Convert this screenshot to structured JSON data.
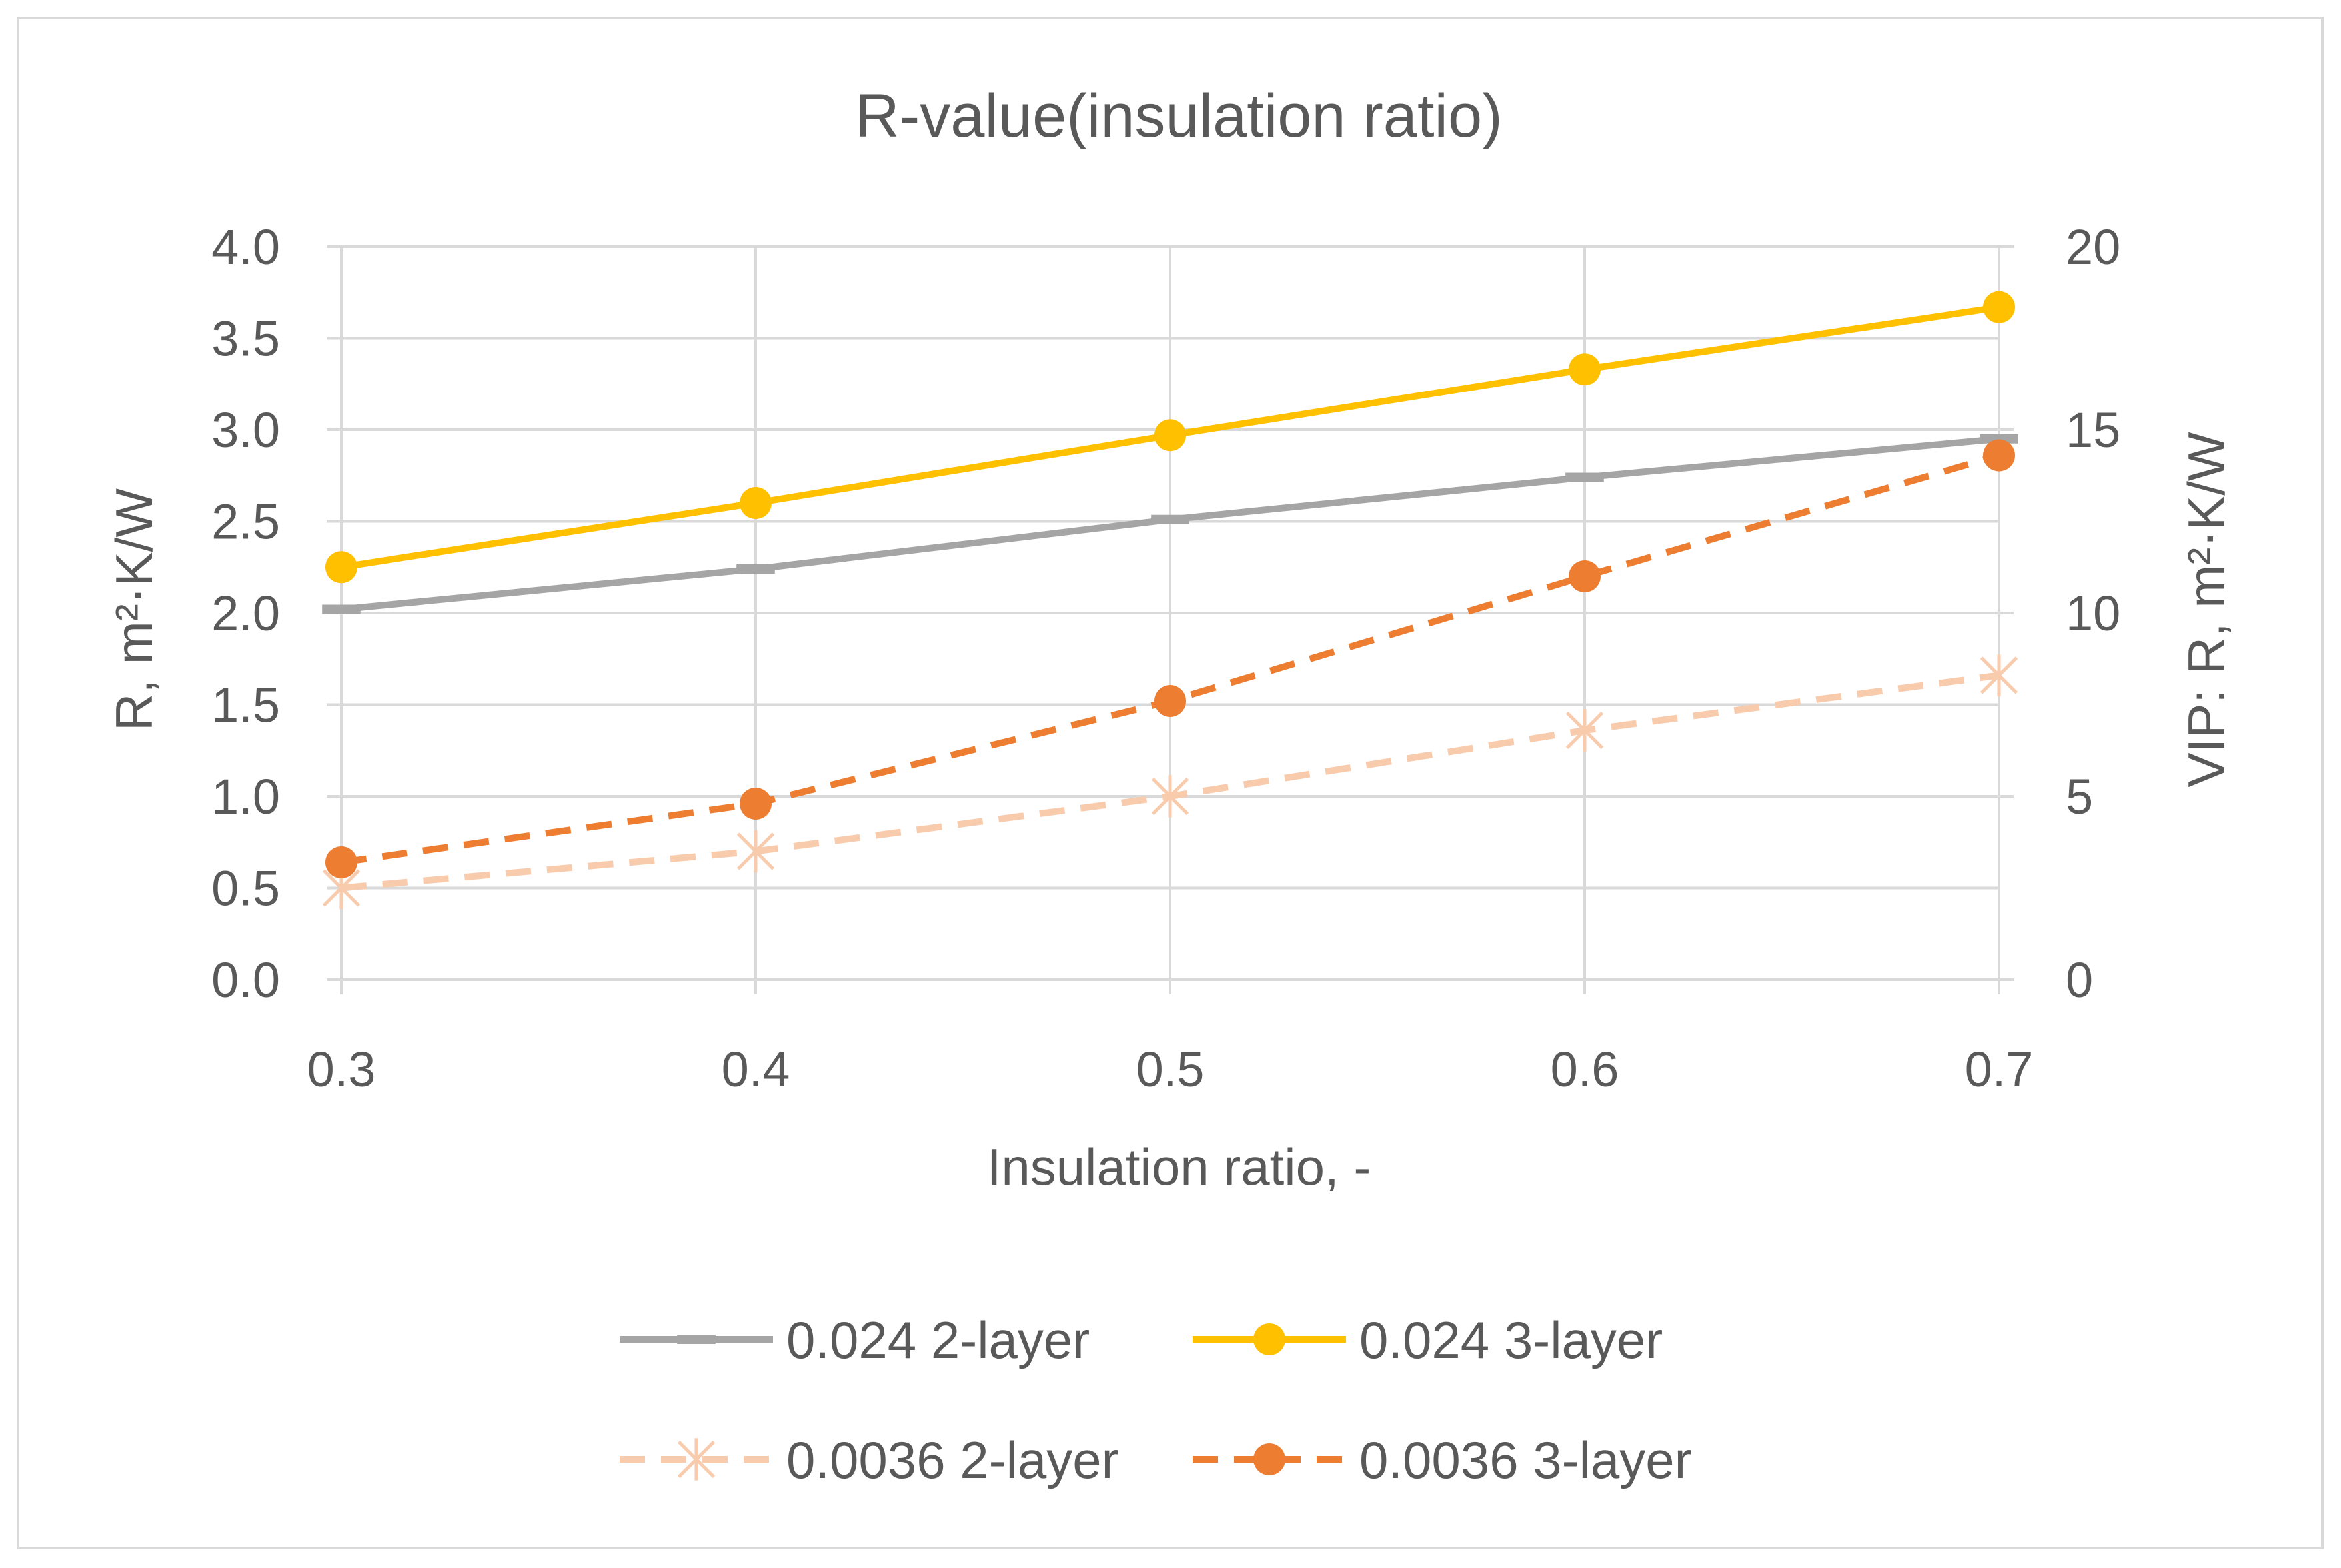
{
  "chart_data": {
    "type": "line",
    "title": "R-value(insulation ratio)",
    "xlabel": "Insulation ratio, -",
    "ylabel": "R, m²·K/W",
    "y2label": "VIP: R, m²·K/W",
    "x": [
      0.3,
      0.4,
      0.5,
      0.6,
      0.7
    ],
    "x_tick_labels": [
      "0.3",
      "0.4",
      "0.5",
      "0.6",
      "0.7"
    ],
    "ylim": [
      0,
      4
    ],
    "y_tick_labels": [
      "0.0",
      "0.5",
      "1.0",
      "1.5",
      "2.0",
      "2.5",
      "3.0",
      "3.5",
      "4.0"
    ],
    "y2lim": [
      0,
      20
    ],
    "y2_tick_labels": [
      "0",
      "5",
      "10",
      "15",
      "20"
    ],
    "grid": true,
    "legend_position": "bottom",
    "series": [
      {
        "name": "0.024 2-layer",
        "axis": "left",
        "values": [
          2.02,
          2.24,
          2.51,
          2.74,
          2.95
        ],
        "color": "#a5a5a5",
        "dash": "solid",
        "marker": "dash"
      },
      {
        "name": "0.024 3-layer",
        "axis": "left",
        "values": [
          2.25,
          2.6,
          2.97,
          3.33,
          3.67
        ],
        "color": "#ffc000",
        "dash": "solid",
        "marker": "circle"
      },
      {
        "name": "0.0036 2-layer",
        "axis": "right",
        "values": [
          2.5,
          3.5,
          5.0,
          6.8,
          8.3
        ],
        "color": "#f8cbad",
        "dash": "dashed",
        "marker": "star"
      },
      {
        "name": "0.0036 3-layer",
        "axis": "right",
        "values": [
          3.2,
          4.8,
          7.6,
          11.0,
          14.3
        ],
        "color": "#ed7d31",
        "dash": "dashed",
        "marker": "circle"
      }
    ]
  }
}
